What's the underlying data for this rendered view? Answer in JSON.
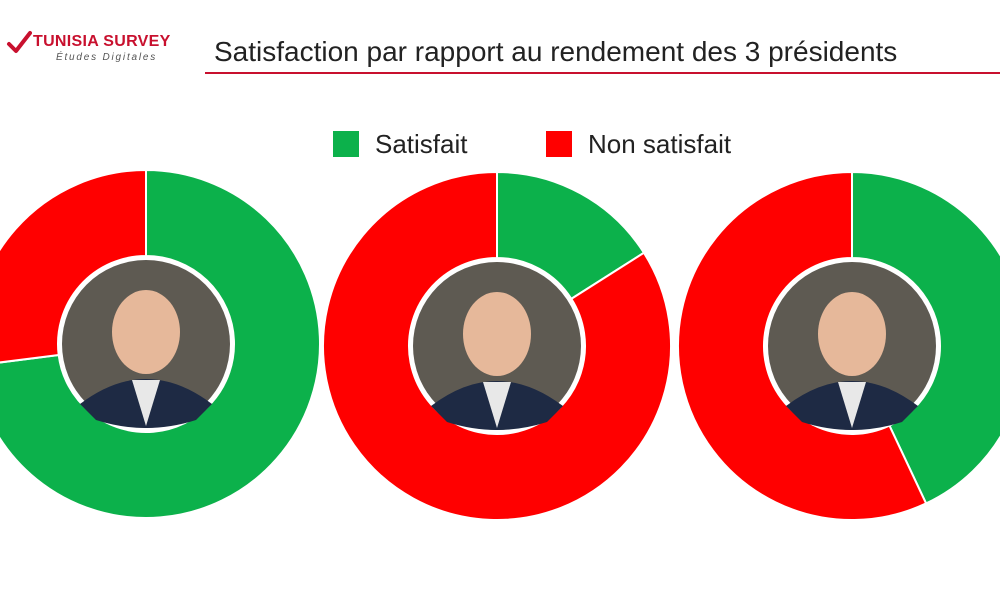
{
  "header": {
    "logo_name": "TUNISIA SURVEY",
    "logo_sub": "Études Digitales",
    "title": "Satisfaction par rapport au rendement  des 3 présidents"
  },
  "legend": {
    "satisfied_label": "Satisfait",
    "unsatisfied_label": "Non satisfait"
  },
  "colors": {
    "satisfied": "#0cb14b",
    "unsatisfied": "#ff0000",
    "accent": "#c8102e"
  },
  "chart_data": {
    "type": "pie",
    "variant": "donut",
    "series_names": [
      "Satisfait",
      "Non satisfait"
    ],
    "charts": [
      {
        "satisfait_pct": 73,
        "non_satisfait_pct": 27
      },
      {
        "satisfait_pct": 16,
        "non_satisfait_pct": 84
      },
      {
        "satisfait_pct": 43,
        "non_satisfait_pct": 57
      }
    ],
    "legend_position": "top-center"
  }
}
